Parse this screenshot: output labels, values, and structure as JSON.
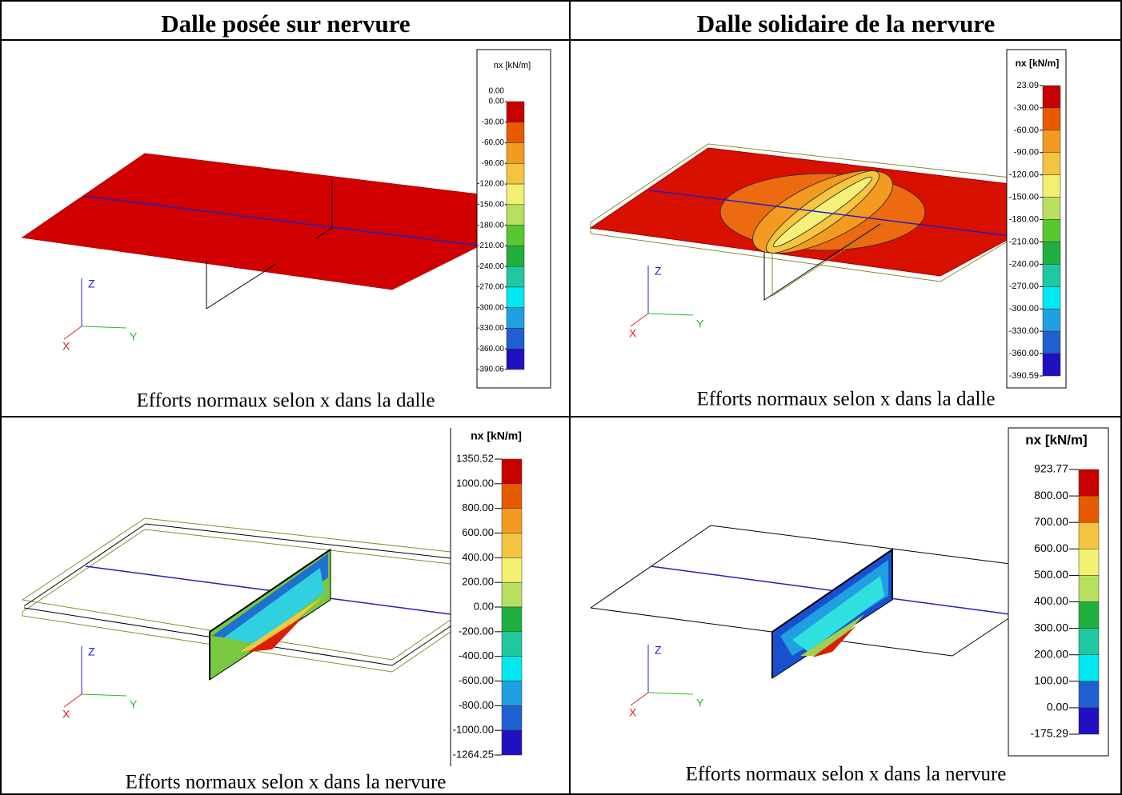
{
  "header": {
    "left": "Dalle posée sur nervure",
    "right": "Dalle solidaire de la nervure"
  },
  "panels": [
    {
      "legend_title": "nx [kN/m]",
      "legend_labels": [
        "0.00",
        "0.00",
        "-30.00",
        "-60.00",
        "-90.00",
        "-120.00",
        "-150.00",
        "-180.00",
        "-210.00",
        "-240.00",
        "-270.00",
        "-300.00",
        "-330.00",
        "-360.00",
        "-390.06"
      ],
      "axes": [
        "Z",
        "Y",
        "X"
      ],
      "caption": "Efforts normaux selon x dans la dalle"
    },
    {
      "legend_title": "nx [kN/m]",
      "legend_labels": [
        "23.09",
        "-30.00",
        "-60.00",
        "-90.00",
        "-120.00",
        "-150.00",
        "-180.00",
        "-210.00",
        "-240.00",
        "-270.00",
        "-300.00",
        "-330.00",
        "-360.00",
        "-390.59"
      ],
      "axes": [
        "Z",
        "Y",
        "X"
      ],
      "caption": "Efforts normaux selon x dans la dalle"
    },
    {
      "legend_title": "nx [kN/m]",
      "legend_labels": [
        "1350.52",
        "1000.00",
        "800.00",
        "600.00",
        "400.00",
        "200.00",
        "0.00",
        "-200.00",
        "-400.00",
        "-600.00",
        "-800.00",
        "-1000.00",
        "-1264.25"
      ],
      "axes": [
        "Z",
        "Y",
        "X"
      ],
      "caption": "Efforts normaux selon x dans la nervure"
    },
    {
      "legend_title": "nx [kN/m]",
      "legend_labels": [
        "923.77",
        "800.00",
        "700.00",
        "600.00",
        "500.00",
        "400.00",
        "300.00",
        "200.00",
        "100.00",
        "0.00",
        "-175.29"
      ],
      "axes": [
        "Z",
        "Y",
        "X"
      ],
      "caption": "Efforts normaux selon x dans la nervure"
    }
  ]
}
